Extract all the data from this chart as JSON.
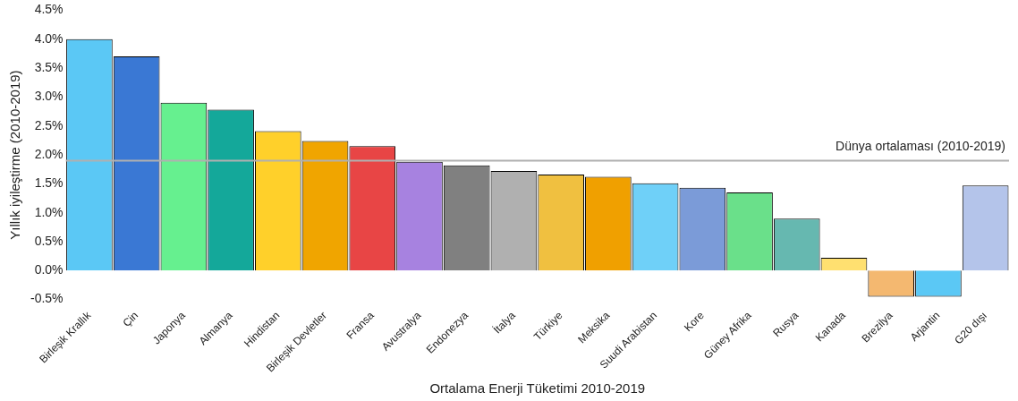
{
  "chart_data": {
    "type": "bar",
    "xlabel": "Ortalama Enerji Tüketimi 2010-2019",
    "ylabel": "Yıllık iyileştirme (2010-2019)",
    "categories": [
      "Birleşik Krallık",
      "Çin",
      "Japonya",
      "Almanya",
      "Hindistan",
      "Birleşik Devletler",
      "Fransa",
      "Avustralya",
      "Endonezya",
      "İtalya",
      "Türkiye",
      "Meksika",
      "Suudi Arabistan",
      "Kore",
      "Güney Afrika",
      "Rusya",
      "Kanada",
      "Brezilya",
      "Arjantin",
      "G20 dışı"
    ],
    "values": [
      4.0,
      3.7,
      2.9,
      2.78,
      2.41,
      2.24,
      2.15,
      1.88,
      1.82,
      1.72,
      1.66,
      1.62,
      1.51,
      1.43,
      1.35,
      0.9,
      0.22,
      -0.45,
      -0.45,
      1.47
    ],
    "colors": [
      "#5bc8f5",
      "#3a78d4",
      "#66f08f",
      "#14a89a",
      "#ffd02a",
      "#f0a500",
      "#e84545",
      "#a782e0",
      "#808080",
      "#b0b0b0",
      "#f0c040",
      "#f0a000",
      "#6fd0f8",
      "#7b9bd8",
      "#6ae08a",
      "#66b8b0",
      "#ffe070",
      "#f4b870",
      "#5bc8f5",
      "#b4c4ea"
    ],
    "ylim": [
      -0.5,
      4.5
    ],
    "yticks": [
      {
        "value": -0.5,
        "label": "-0.5%"
      },
      {
        "value": 0,
        "label": "0.0%"
      },
      {
        "value": 0.5,
        "label": "0.5%"
      },
      {
        "value": 1,
        "label": "1.0%"
      },
      {
        "value": 1.5,
        "label": "1.5%"
      },
      {
        "value": 2,
        "label": "2.0%"
      },
      {
        "value": 2.5,
        "label": "2.5%"
      },
      {
        "value": 3,
        "label": "3.0%"
      },
      {
        "value": 3.5,
        "label": "3.5%"
      },
      {
        "value": 4,
        "label": "4.0%"
      },
      {
        "value": 4.5,
        "label": "4.5%"
      }
    ],
    "ref_lines": [
      {
        "axis": "y",
        "value": 1.9,
        "label": "Dünya ortalaması (2010-2019)",
        "color": "#b0b0b0"
      }
    ],
    "grid": false,
    "legend": false
  }
}
